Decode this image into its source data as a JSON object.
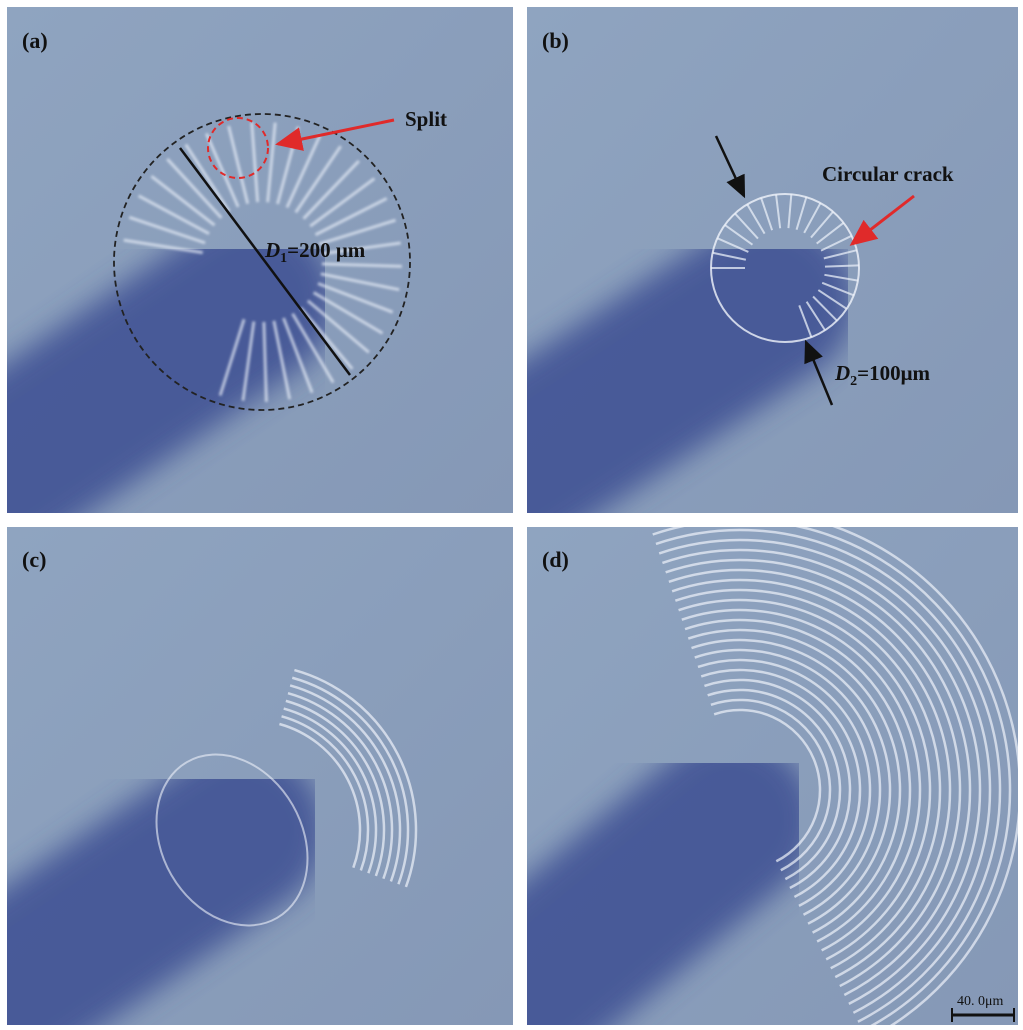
{
  "panels": [
    {
      "label": "(a)"
    },
    {
      "label": "(b)"
    },
    {
      "label": "(c)"
    },
    {
      "label": "(d)"
    }
  ],
  "annotations": {
    "split": "Split",
    "d1": {
      "symbol": "D",
      "subscript": "1",
      "value": "=200 μm"
    },
    "circular_crack": "Circular crack",
    "d2": {
      "symbol": "D",
      "subscript": "2",
      "value": "=100μm"
    },
    "scale_bar": "40. 0μm"
  }
}
